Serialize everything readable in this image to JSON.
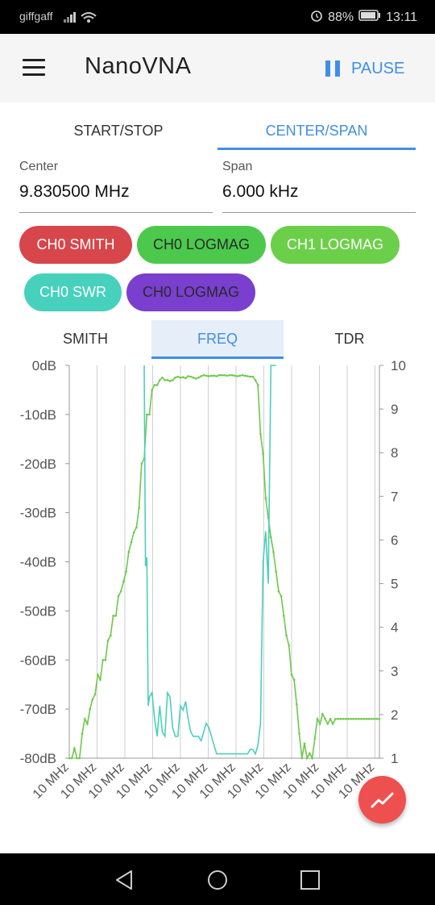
{
  "status": {
    "carrier": "giffgaff",
    "battery": "88%",
    "time": "13:11"
  },
  "app": {
    "title": "NanoVNA",
    "pause_label": "PAUSE"
  },
  "range_tabs": [
    {
      "label": "START/STOP"
    },
    {
      "label": "CENTER/SPAN"
    }
  ],
  "center": {
    "label": "Center",
    "value": "9.830500 MHz"
  },
  "span": {
    "label": "Span",
    "value": "6.000 kHz"
  },
  "chips": [
    {
      "label": "CH0 SMITH",
      "bg": "#d6464b",
      "fg": "#ffffff"
    },
    {
      "label": "CH0 LOGMAG",
      "bg": "#4cc94c",
      "fg": "#2a2a2a"
    },
    {
      "label": "CH1 LOGMAG",
      "bg": "#6ccf4a",
      "fg": "#ffffff"
    },
    {
      "label": "CH0 SWR",
      "bg": "#47d1bd",
      "fg": "#ffffff"
    },
    {
      "label": "CH0 LOGMAG",
      "bg": "#7a3fce",
      "fg": "#2a2a2a"
    }
  ],
  "view_tabs": [
    {
      "label": "SMITH"
    },
    {
      "label": "FREQ"
    },
    {
      "label": "TDR"
    }
  ],
  "chart_data": {
    "type": "line",
    "left_axis": {
      "ticks": [
        "0dB",
        "-10dB",
        "-20dB",
        "-30dB",
        "-40dB",
        "-50dB",
        "-60dB",
        "-70dB",
        "-80dB"
      ],
      "ylim": [
        -80,
        0
      ]
    },
    "right_axis": {
      "ticks": [
        "10",
        "9",
        "8",
        "7",
        "6",
        "5",
        "4",
        "3",
        "2",
        "1"
      ],
      "ylim": [
        1,
        10
      ]
    },
    "x_ticks": [
      "10 MHz",
      "10 MHz",
      "10 MHz",
      "10 MHz",
      "10 MHz",
      "10 MHz",
      "10 MHz",
      "10 MHz",
      "10 MHz",
      "10 MHz",
      "10 MHz",
      "10 MHz"
    ],
    "series": [
      {
        "axis": "left",
        "color": "#6cc94a",
        "x": [
          0,
          1,
          2,
          3,
          4,
          5,
          6,
          7,
          8,
          9,
          10,
          11,
          12,
          13,
          14,
          15,
          16,
          17,
          18,
          19,
          20,
          21,
          22,
          23,
          24,
          25,
          26,
          27,
          28,
          29,
          30,
          31,
          32,
          33,
          34,
          35,
          36,
          37,
          38,
          39,
          40,
          41,
          42,
          43,
          44,
          45,
          46,
          47,
          48,
          49,
          50,
          51,
          52,
          53,
          54,
          55,
          56,
          57,
          58,
          59,
          60,
          61,
          62,
          63,
          64,
          65,
          66,
          67,
          68,
          69,
          70,
          71,
          72,
          73,
          74,
          75,
          76,
          77,
          78,
          79,
          80,
          81,
          82,
          83,
          84,
          85,
          86,
          87,
          88,
          89,
          90,
          91,
          92,
          93,
          94,
          95,
          96,
          97,
          98,
          99,
          100,
          101,
          102,
          103,
          104,
          105,
          106,
          107,
          108,
          109,
          110,
          111,
          112,
          113,
          114,
          115,
          116,
          117,
          118,
          119,
          120
        ],
        "values": [
          -80,
          -80,
          -78,
          -81,
          -80,
          -75,
          -72,
          -73,
          -70,
          -68,
          -67,
          -63,
          -64,
          -60,
          -60,
          -56,
          -55,
          -51,
          -51,
          -47,
          -46,
          -44,
          -42,
          -38,
          -36,
          -34,
          -33,
          -29,
          -20,
          -19,
          -10,
          -10,
          -5,
          -4,
          -4,
          -3,
          -2.5,
          -3,
          -3,
          -3.2,
          -3,
          -2.5,
          -2.3,
          -2.5,
          -2.4,
          -2.6,
          -2.2,
          -2.3,
          -2.5,
          -2.7,
          -2.5,
          -2.2,
          -2,
          -2.1,
          -2.2,
          -2.1,
          -2.1,
          -2.2,
          -2,
          -2,
          -2,
          -2.1,
          -2,
          -2,
          -2.1,
          -2.2,
          -2.1,
          -2,
          -2.1,
          -2.2,
          -2.3,
          -2.3,
          -3,
          -4,
          -14,
          -18,
          -27,
          -31,
          -35,
          -38,
          -42,
          -46,
          -47,
          -51,
          -55,
          -57,
          -63,
          -64,
          -69,
          -75,
          -80,
          -77,
          -80,
          -79,
          -80,
          -76,
          -72,
          -73,
          -71,
          -72,
          -73,
          -72,
          -73,
          -72,
          -72,
          -72,
          -72,
          -72,
          -72,
          -72,
          -72,
          -72,
          -72,
          -72,
          -72,
          -72,
          -72,
          -72,
          -72,
          -72,
          -72
        ]
      },
      {
        "axis": "right",
        "color": "#4ccfbd",
        "x": [
          29,
          29.5,
          30,
          30.5,
          31,
          32,
          33,
          34,
          35,
          36,
          37,
          38,
          39,
          40,
          41,
          42,
          43,
          44,
          45,
          46,
          47,
          48,
          49,
          50,
          51,
          52,
          53,
          54,
          55,
          56,
          57,
          58,
          59,
          60,
          61,
          62,
          63,
          64,
          65,
          66,
          67,
          68,
          69,
          70,
          71,
          72,
          73,
          74,
          75,
          76,
          77,
          78,
          79,
          80
        ],
        "values": [
          10.5,
          5.4,
          5.6,
          2.2,
          2.4,
          2.5,
          1.9,
          1.5,
          2.2,
          1.6,
          1.5,
          2.5,
          2.4,
          1.7,
          1.5,
          1.5,
          2.2,
          2.1,
          2.3,
          1.9,
          1.6,
          1.5,
          1.5,
          1.5,
          1.4,
          1.6,
          1.8,
          1.7,
          1.5,
          1.3,
          1.1,
          1.1,
          1.1,
          1.1,
          1.1,
          1.1,
          1.1,
          1.1,
          1.1,
          1.1,
          1.1,
          1.1,
          1.1,
          1.2,
          1.2,
          1.1,
          1.3,
          1.8,
          5.5,
          6.2,
          5.0,
          10.5,
          10.5,
          10.5
        ]
      }
    ],
    "xlim": [
      0,
      120
    ]
  }
}
